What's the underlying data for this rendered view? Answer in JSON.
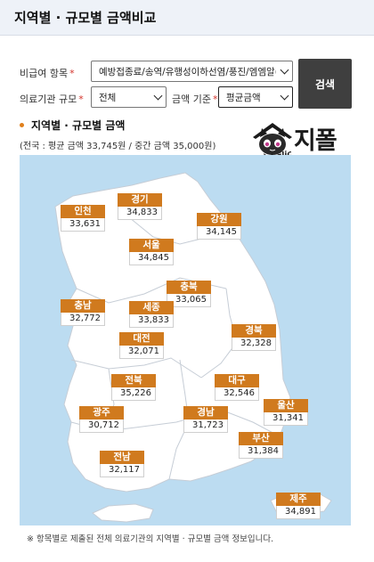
{
  "header": {
    "title": "지역별 · 규모별 금액비교"
  },
  "form": {
    "item_label": "비급여 항목",
    "item_value": "예방접종료/송역/유행성이하선염/풍진/엠엠알(II",
    "size_label": "의료기관 규모",
    "size_value": "전체",
    "basis_label": "금액 기준",
    "basis_value": "평균금액",
    "required_mark": "*",
    "search_label": "검색"
  },
  "section": {
    "title": "지역별 · 규모별 금액",
    "summary": "(전국 : 평균 금액 33,745원 / 중간 금액 35,000원)"
  },
  "logo": {
    "brand": "지폴릭",
    "small": "Zipholic"
  },
  "regions": {
    "incheon": {
      "name": "인천",
      "value": "33,631"
    },
    "gyeonggi": {
      "name": "경기",
      "value": "34,833"
    },
    "gangwon": {
      "name": "강원",
      "value": "34,145"
    },
    "seoul": {
      "name": "서울",
      "value": "34,845"
    },
    "chungbuk": {
      "name": "충북",
      "value": "33,065"
    },
    "chungnam": {
      "name": "충남",
      "value": "32,772"
    },
    "sejong": {
      "name": "세종",
      "value": "33,833"
    },
    "daejeon": {
      "name": "대전",
      "value": "32,071"
    },
    "gyeongbuk": {
      "name": "경북",
      "value": "32,328"
    },
    "jeonbuk": {
      "name": "전북",
      "value": "35,226"
    },
    "daegu": {
      "name": "대구",
      "value": "32,546"
    },
    "ulsan": {
      "name": "울산",
      "value": "31,341"
    },
    "gwangju": {
      "name": "광주",
      "value": "30,712"
    },
    "gyeongnam": {
      "name": "경남",
      "value": "31,723"
    },
    "busan": {
      "name": "부산",
      "value": "31,384"
    },
    "jeonnam": {
      "name": "전남",
      "value": "32,117"
    },
    "jeju": {
      "name": "제주",
      "value": "34,891"
    }
  },
  "footnote": "※ 항목별로 제출된 전체 의료기관의 지역별 · 규모별 금액 정보입니다.",
  "colors": {
    "badge": "#d07a1e",
    "map_bg": "#bcdcf1",
    "land": "#ffffff"
  }
}
